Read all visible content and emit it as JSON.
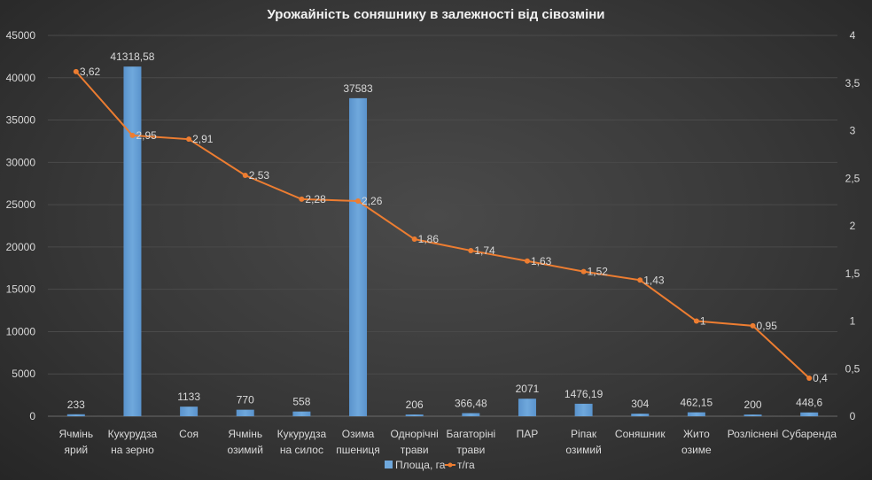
{
  "chart_data": {
    "type": "bar+line",
    "title": "Урожайність соняшнику в залежності від сівозміни",
    "categories": [
      [
        "Ячмінь",
        "ярий"
      ],
      [
        "Кукурудза",
        "на зерно"
      ],
      [
        "Соя"
      ],
      [
        "Ячмінь",
        "озимий"
      ],
      [
        "Кукурудза",
        "на силос"
      ],
      [
        "Озима",
        "пшениця"
      ],
      [
        "Однорічні",
        "трави"
      ],
      [
        "Багаторіні",
        "трави"
      ],
      [
        "ПАР"
      ],
      [
        "Ріпак",
        "озимий"
      ],
      [
        "Соняшник"
      ],
      [
        "Жито",
        "озиме"
      ],
      [
        "Розліснені"
      ],
      [
        "Субаренда"
      ]
    ],
    "series": [
      {
        "name": "Площа, га",
        "type": "bar",
        "axis": "left",
        "values": [
          233,
          41318.58,
          1133,
          770,
          558,
          37583,
          206,
          366.48,
          2071,
          1476.19,
          304,
          462.15,
          200,
          448.6
        ],
        "labels": [
          "233",
          "41318,58",
          "1133",
          "770",
          "558",
          "37583",
          "206",
          "366,48",
          "2071",
          "1476,19",
          "304",
          "462,15",
          "200",
          "448,6"
        ]
      },
      {
        "name": "т/га",
        "type": "line",
        "axis": "right",
        "values": [
          3.62,
          2.95,
          2.91,
          2.53,
          2.28,
          2.26,
          1.86,
          1.74,
          1.63,
          1.52,
          1.43,
          1,
          0.95,
          0.4
        ],
        "labels": [
          "3,62",
          "2,95",
          "2,91",
          "2,53",
          "2,28",
          "2,26",
          "1,86",
          "1,74",
          "1,63",
          "1,52",
          "1,43",
          "1",
          "0,95",
          "0,4"
        ]
      }
    ],
    "ylim": [
      0,
      45000
    ],
    "yticks": [
      "0",
      "5000",
      "10000",
      "15000",
      "20000",
      "25000",
      "30000",
      "35000",
      "40000",
      "45000"
    ],
    "y2lim": [
      0,
      4
    ],
    "y2ticks": [
      "0",
      "0,5",
      "1",
      "1,5",
      "2",
      "2,5",
      "3",
      "3,5",
      "4"
    ],
    "legend": "bottom",
    "grid": true,
    "colors": {
      "bar": "#6fa8dc",
      "line": "#ed7d31"
    }
  }
}
